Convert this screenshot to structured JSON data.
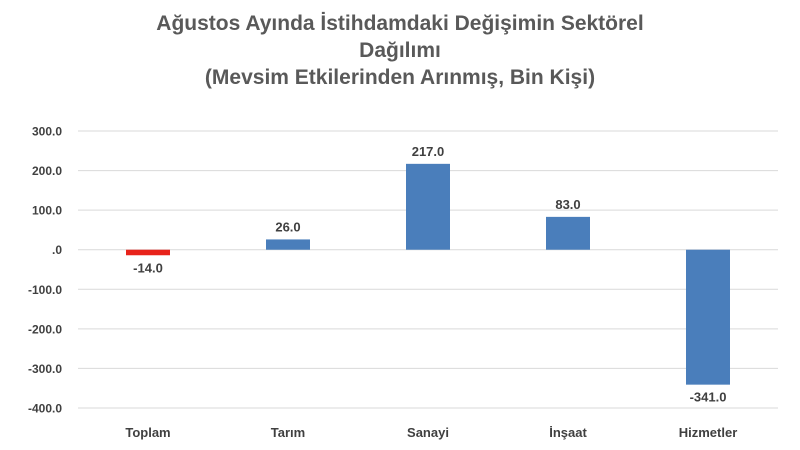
{
  "chart_data": {
    "type": "bar",
    "title_lines": [
      "Ağustos Ayında İstihdamdaki Değişimin Sektörel",
      "Dağılımı",
      "(Mevsim Etkilerinden Arınmış, Bin Kişi)"
    ],
    "categories": [
      "Toplam",
      "Tarım",
      "Sanayi",
      "İnşaat",
      "Hizmetler"
    ],
    "values": [
      -14.0,
      26.0,
      217.0,
      83.0,
      -341.0
    ],
    "value_labels": [
      "-14.0",
      "26.0",
      "217.0",
      "83.0",
      "-341.0"
    ],
    "bar_colors": [
      "#e8231b",
      "#4a7ebb",
      "#4a7ebb",
      "#4a7ebb",
      "#4a7ebb"
    ],
    "ylim": [
      -400,
      300
    ],
    "yticks": [
      300,
      200,
      100,
      0,
      -100,
      -200,
      -300,
      -400
    ],
    "ytick_labels": [
      "300.0",
      "200.0",
      "100.0",
      ".0",
      "-100.0",
      "-200.0",
      "-300.0",
      "-400.0"
    ],
    "grid": true,
    "gridline_color": "#d9d9d9",
    "text_color": "#404040"
  }
}
